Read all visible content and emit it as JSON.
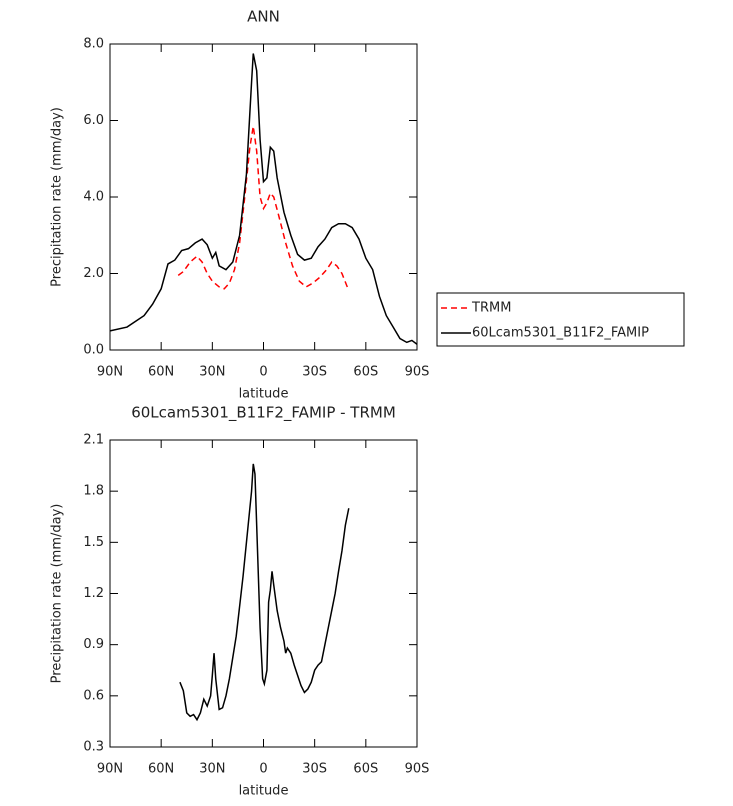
{
  "chart_data": [
    {
      "type": "line",
      "title": "ANN",
      "xlabel": "latitude",
      "ylabel": "Precipitation rate (mm/day)",
      "xlim": [
        90,
        -90
      ],
      "xticks": [
        {
          "value": 90,
          "label": "90N"
        },
        {
          "value": 60,
          "label": "60N"
        },
        {
          "value": 30,
          "label": "30N"
        },
        0,
        {
          "value": -30,
          "label": "30S"
        },
        {
          "value": -60,
          "label": "60S"
        },
        {
          "value": -90,
          "label": "90S"
        }
      ],
      "ylim": [
        0,
        8
      ],
      "yticks": [
        {
          "value": 0,
          "label": "0.0"
        },
        {
          "value": 2,
          "label": "2.0"
        },
        {
          "value": 4,
          "label": "4.0"
        },
        {
          "value": 6,
          "label": "6.0"
        },
        {
          "value": 8,
          "label": "8.0"
        }
      ],
      "legend": "outside right",
      "series": [
        {
          "name": "TRMM",
          "color": "#ff0000",
          "dashed": true,
          "x": [
            50,
            47,
            43,
            39,
            36,
            33,
            30,
            26,
            23,
            20,
            17,
            14,
            11,
            8,
            6,
            4,
            2,
            0,
            -2,
            -4,
            -6,
            -9,
            -13,
            -17,
            -21,
            -25,
            -29,
            -33,
            -37,
            -40,
            -43,
            -46,
            -50
          ],
          "values": [
            1.95,
            2.05,
            2.3,
            2.45,
            2.3,
            2.0,
            1.8,
            1.65,
            1.6,
            1.75,
            2.1,
            2.8,
            4.0,
            5.3,
            5.85,
            5.2,
            4.0,
            3.7,
            3.85,
            4.1,
            4.0,
            3.5,
            2.8,
            2.2,
            1.8,
            1.65,
            1.75,
            1.9,
            2.1,
            2.3,
            2.2,
            2.0,
            1.55
          ]
        },
        {
          "name": "60Lcam5301_B11F2_FAMIP",
          "color": "#000000",
          "dashed": false,
          "x": [
            90,
            80,
            70,
            65,
            60,
            56,
            52,
            48,
            44,
            40,
            36,
            33,
            30,
            28,
            26,
            22,
            18,
            14,
            10,
            7,
            6,
            4,
            2,
            0,
            -2,
            -4,
            -6,
            -8,
            -12,
            -16,
            -20,
            -24,
            -28,
            -32,
            -36,
            -40,
            -44,
            -48,
            -52,
            -56,
            -60,
            -64,
            -68,
            -72,
            -76,
            -80,
            -84,
            -87,
            -90
          ],
          "values": [
            0.5,
            0.6,
            0.9,
            1.2,
            1.6,
            2.25,
            2.35,
            2.6,
            2.65,
            2.8,
            2.9,
            2.75,
            2.4,
            2.55,
            2.2,
            2.1,
            2.3,
            3.0,
            4.6,
            7.0,
            7.75,
            7.3,
            5.5,
            4.4,
            4.5,
            5.3,
            5.2,
            4.5,
            3.6,
            3.0,
            2.5,
            2.35,
            2.4,
            2.7,
            2.9,
            3.2,
            3.3,
            3.3,
            3.2,
            2.9,
            2.4,
            2.1,
            1.4,
            0.9,
            0.6,
            0.3,
            0.2,
            0.25,
            0.15
          ]
        }
      ]
    },
    {
      "type": "line",
      "title": "60Lcam5301_B11F2_FAMIP - TRMM",
      "xlabel": "latitude",
      "ylabel": "Precipitation rate (mm/day)",
      "xlim": [
        90,
        -90
      ],
      "xticks": [
        {
          "value": 90,
          "label": "90N"
        },
        {
          "value": 60,
          "label": "60N"
        },
        {
          "value": 30,
          "label": "30N"
        },
        0,
        {
          "value": -30,
          "label": "30S"
        },
        {
          "value": -60,
          "label": "60S"
        },
        {
          "value": -90,
          "label": "90S"
        }
      ],
      "ylim": [
        0.3,
        2.1
      ],
      "yticks": [
        0.3,
        0.6,
        0.9,
        1.2,
        1.5,
        1.8,
        2.1
      ],
      "series": [
        {
          "color": "#000000",
          "dashed": false,
          "x": [
            49,
            47,
            45,
            43,
            41,
            39,
            37,
            35,
            33,
            31,
            30,
            29,
            28,
            26,
            24,
            22,
            20,
            16,
            12,
            9,
            7,
            6,
            5,
            4,
            2,
            0.5,
            -0.5,
            -2,
            -3,
            -4,
            -5,
            -6,
            -8,
            -10,
            -12,
            -13,
            -14,
            -16,
            -18,
            -20,
            -22,
            -24,
            -26,
            -28,
            -30,
            -32,
            -34,
            -36,
            -38,
            -40,
            -42,
            -44,
            -46,
            -48,
            -50
          ],
          "values": [
            0.68,
            0.63,
            0.5,
            0.48,
            0.49,
            0.46,
            0.5,
            0.58,
            0.54,
            0.6,
            0.72,
            0.85,
            0.7,
            0.52,
            0.53,
            0.6,
            0.7,
            0.95,
            1.3,
            1.6,
            1.8,
            1.96,
            1.9,
            1.6,
            1.0,
            0.7,
            0.67,
            0.75,
            1.15,
            1.22,
            1.33,
            1.25,
            1.1,
            1.0,
            0.92,
            0.85,
            0.88,
            0.85,
            0.78,
            0.72,
            0.66,
            0.62,
            0.64,
            0.68,
            0.75,
            0.78,
            0.8,
            0.9,
            1.0,
            1.1,
            1.2,
            1.33,
            1.45,
            1.6,
            1.7
          ]
        }
      ]
    }
  ]
}
